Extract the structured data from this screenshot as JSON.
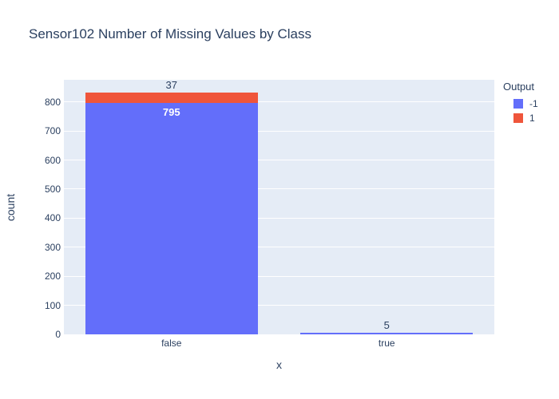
{
  "title": "Sensor102 Number of Missing Values by Class",
  "colors": {
    "accent_blue": "#636EFA",
    "accent_red": "#EF553B",
    "plot_background": "#E5ECF6",
    "text": "#2a3f5f",
    "grid": "#FFFFFF"
  },
  "legend": {
    "title": "Output",
    "items": [
      {
        "label": "-1",
        "color": "#636EFA"
      },
      {
        "label": "1",
        "color": "#EF553B"
      }
    ]
  },
  "chart_data": {
    "type": "bar",
    "stacked": true,
    "title": "Sensor102 Number of Missing Values by Class",
    "categories": [
      "false",
      "true"
    ],
    "series": [
      {
        "name": "-1",
        "color": "#636EFA",
        "values": [
          795,
          5
        ]
      },
      {
        "name": "1",
        "color": "#EF553B",
        "values": [
          37,
          0
        ]
      }
    ],
    "bar_labels": [
      {
        "category_index": 0,
        "series_index": 0,
        "text": "795",
        "position": "inside"
      },
      {
        "category_index": 0,
        "series_index": 1,
        "text": "37",
        "position": "outside"
      },
      {
        "category_index": 1,
        "series_index": 0,
        "text": "5",
        "position": "outside"
      }
    ],
    "xlabel": "x",
    "ylabel": "count",
    "ylim": [
      0,
      876
    ],
    "yticks": [
      0,
      100,
      200,
      300,
      400,
      500,
      600,
      700,
      800
    ],
    "grid": true,
    "legend_title": "Output",
    "legend_position": "right-top",
    "bar_gap_fraction": 0.2
  }
}
